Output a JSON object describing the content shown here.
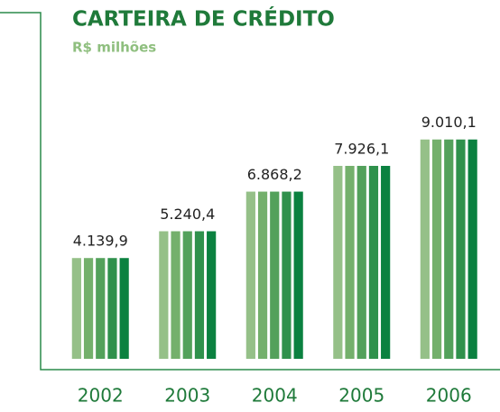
{
  "chart_data": {
    "type": "bar",
    "title": "CARTEIRA DE CRÉDITO",
    "subtitle": "R$ milhões",
    "categories": [
      "2002",
      "2003",
      "2004",
      "2005",
      "2006"
    ],
    "values": [
      4139.9,
      5240.4,
      6868.2,
      7926.1,
      9010.1
    ],
    "value_labels": [
      "4.139,9",
      "5.240,4",
      "6.868,2",
      "7.926,1",
      "9.010,1"
    ],
    "colors": [
      "#95c088",
      "#74b06c",
      "#53a15b",
      "#2f914c",
      "#0b8140"
    ],
    "ylim": [
      0,
      10000
    ]
  }
}
